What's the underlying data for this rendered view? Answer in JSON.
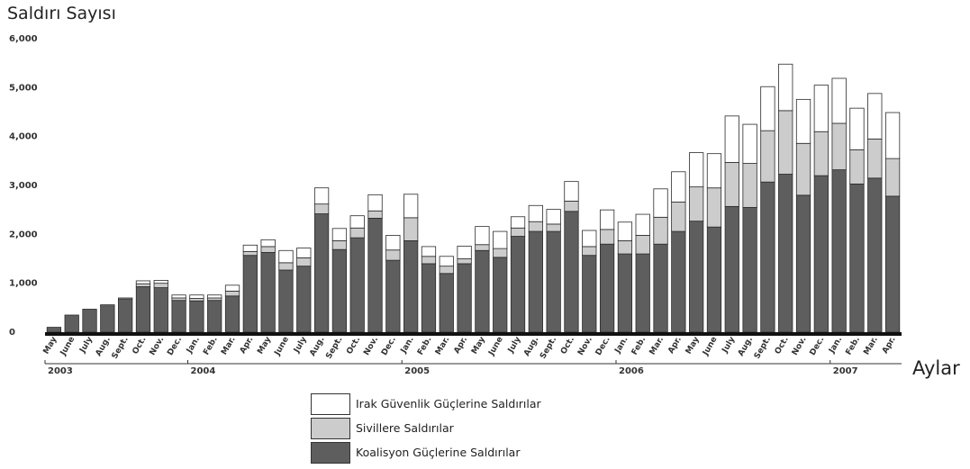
{
  "chart_data": {
    "type": "bar",
    "stacked": true,
    "title": "",
    "ylabel": "Saldırı Sayısı",
    "xlabel": "Aylar",
    "ylim": [
      0,
      6000
    ],
    "y_ticks": [
      0,
      1000,
      2000,
      3000,
      4000,
      5000,
      6000
    ],
    "y_tick_labels": [
      "0",
      "1,000",
      "2,000",
      "3,000",
      "4,000",
      "5,000",
      "6,000"
    ],
    "grid": false,
    "legend_position": "bottom-center",
    "categories": [
      "May",
      "June",
      "July",
      "Aug.",
      "Sept.",
      "Oct.",
      "Nov.",
      "Dec.",
      "Jan.",
      "Feb.",
      "Mar.",
      "Apr.",
      "May",
      "June",
      "July",
      "Aug.",
      "Sept.",
      "Oct.",
      "Nov.",
      "Dec.",
      "Jan.",
      "Feb.",
      "Mar.",
      "Apr.",
      "May",
      "June",
      "July",
      "Aug.",
      "Sept.",
      "Oct.",
      "Nov.",
      "Dec.",
      "Jan.",
      "Feb.",
      "Mar.",
      "Apr.",
      "May",
      "June",
      "July",
      "Aug.",
      "Sept.",
      "Oct.",
      "Nov.",
      "Dec.",
      "Jan.",
      "Feb.",
      "Mar.",
      "Apr."
    ],
    "years": [
      {
        "label": "2003",
        "start": 0,
        "end": 7
      },
      {
        "label": "2004",
        "start": 8,
        "end": 19
      },
      {
        "label": "2005",
        "start": 20,
        "end": 31
      },
      {
        "label": "2006",
        "start": 32,
        "end": 43
      },
      {
        "label": "2007",
        "start": 44,
        "end": 47
      }
    ],
    "series": [
      {
        "name": "Koalisyon Güçlerine Saldırılar",
        "color": "#5e5e5e",
        "values": [
          100,
          350,
          470,
          540,
          680,
          930,
          910,
          650,
          640,
          650,
          740,
          1570,
          1630,
          1270,
          1350,
          2420,
          1690,
          1930,
          2330,
          1470,
          1870,
          1400,
          1200,
          1400,
          1670,
          1530,
          1960,
          2060,
          2060,
          2470,
          1570,
          1800,
          1600,
          1600,
          1800,
          2060,
          2270,
          2150,
          2570,
          2550,
          3070,
          3230,
          2800,
          3200,
          3320,
          3030,
          3150,
          2780
        ]
      },
      {
        "name": "Sivillere Saldırılar",
        "color": "#cccccc",
        "values": [
          0,
          0,
          0,
          0,
          0,
          60,
          90,
          50,
          50,
          50,
          100,
          80,
          120,
          150,
          170,
          200,
          180,
          200,
          150,
          210,
          470,
          150,
          150,
          100,
          120,
          180,
          170,
          200,
          150,
          210,
          180,
          300,
          270,
          380,
          550,
          600,
          700,
          800,
          900,
          900,
          1050,
          1300,
          1060,
          900,
          950,
          700,
          800,
          770
        ]
      },
      {
        "name": "Irak Güvenlik Güçlerine Saldırılar",
        "color": "#ffffff",
        "values": [
          0,
          0,
          0,
          20,
          20,
          60,
          60,
          60,
          70,
          60,
          120,
          130,
          140,
          250,
          200,
          330,
          250,
          250,
          330,
          300,
          480,
          200,
          200,
          260,
          370,
          350,
          230,
          330,
          300,
          400,
          330,
          400,
          380,
          430,
          580,
          620,
          700,
          700,
          950,
          800,
          900,
          950,
          900,
          950,
          920,
          850,
          930,
          940
        ]
      }
    ]
  }
}
